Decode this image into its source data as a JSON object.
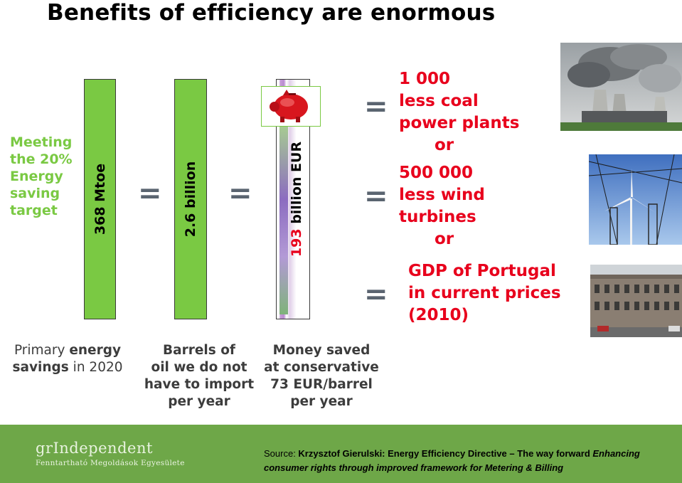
{
  "title": "Benefits of efficiency are enormous",
  "goal_text": "Meeting the 20% Energy saving target",
  "bars": {
    "mtoe": "368 Mtoe",
    "barrels": "2.6 billion",
    "eur": "193 billion EUR"
  },
  "equals": "=",
  "outcomes": {
    "coal": [
      "1 000",
      "less coal",
      "power plants"
    ],
    "wind": [
      "500 000",
      "less wind",
      "turbines"
    ],
    "gdp": [
      "GDP of Portugal",
      "in current prices",
      "(2010)"
    ],
    "or": "or"
  },
  "captions": {
    "c1": {
      "normal1": "Primary ",
      "bold1": "energy",
      "normal2": "savings",
      "normal3": " in 2020"
    },
    "c2": [
      "Barrels of",
      "oil we do not",
      "have to import",
      "per year"
    ],
    "c3": [
      "Money saved",
      "at conservative",
      "73 EUR/barrel",
      "per year"
    ]
  },
  "footer": {
    "logo_line1": "grIndependent",
    "logo_line2": "Fenntartható Megoldások Egyesülete",
    "source_prefix": "Source: ",
    "source_bold": "Krzysztof Gierulski:  Energy Efficiency Directive – The way forward ",
    "source_italic": "Enhancing consumer rights through improved framework for Metering & Billing"
  },
  "colors": {
    "green": "#7ac943",
    "red": "#e8001c",
    "footer": "#6ea748"
  },
  "icons": [
    "piggy-bank-icon"
  ]
}
